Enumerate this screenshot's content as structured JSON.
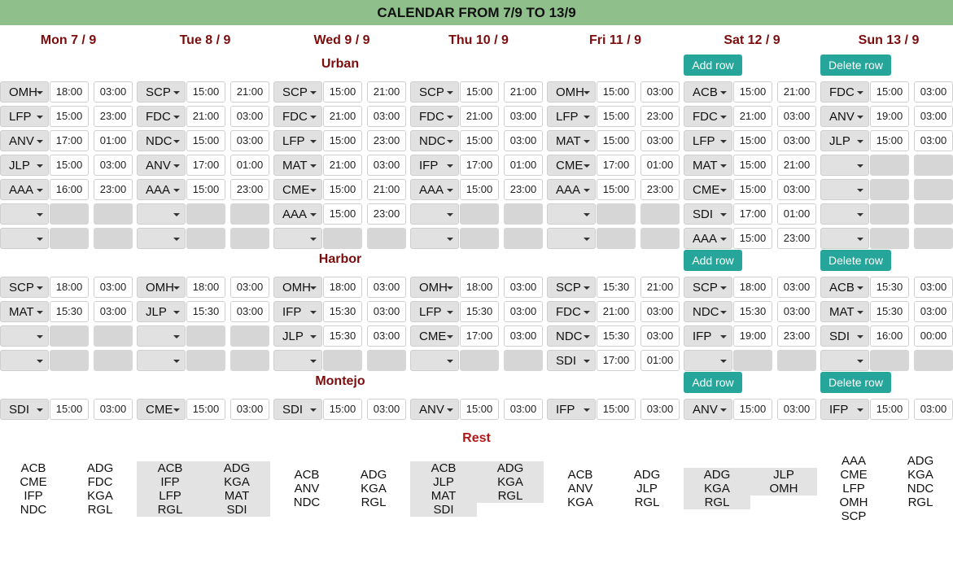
{
  "title": "CALENDAR FROM 7/9 TO 13/9",
  "days": [
    "Mon 7 / 9",
    "Tue 8 / 9",
    "Wed 9 / 9",
    "Thu 10 / 9",
    "Fri 11 / 9",
    "Sat 12 / 9",
    "Sun 13 / 9"
  ],
  "buttons": {
    "add": "Add row",
    "delete": "Delete row"
  },
  "colors": {
    "header_bg": "#8fbf8a",
    "day_text": "#7b0d0d",
    "button_bg": "#26a69a",
    "rest_title": "#b01717"
  },
  "sections": [
    {
      "name": "Urban",
      "rows": [
        [
          [
            "OMH",
            "18:00",
            "03:00"
          ],
          [
            "SCP",
            "15:00",
            "21:00"
          ],
          [
            "SCP",
            "15:00",
            "21:00"
          ],
          [
            "SCP",
            "15:00",
            "21:00"
          ],
          [
            "OMH",
            "15:00",
            "03:00"
          ],
          [
            "ACB",
            "15:00",
            "21:00"
          ],
          [
            "FDC",
            "15:00",
            "03:00"
          ]
        ],
        [
          [
            "LFP",
            "15:00",
            "23:00"
          ],
          [
            "FDC",
            "21:00",
            "03:00"
          ],
          [
            "FDC",
            "21:00",
            "03:00"
          ],
          [
            "FDC",
            "21:00",
            "03:00"
          ],
          [
            "LFP",
            "15:00",
            "23:00"
          ],
          [
            "FDC",
            "21:00",
            "03:00"
          ],
          [
            "ANV",
            "19:00",
            "03:00"
          ]
        ],
        [
          [
            "ANV",
            "17:00",
            "01:00"
          ],
          [
            "NDC",
            "15:00",
            "03:00"
          ],
          [
            "LFP",
            "15:00",
            "23:00"
          ],
          [
            "NDC",
            "15:00",
            "03:00"
          ],
          [
            "MAT",
            "15:00",
            "03:00"
          ],
          [
            "LFP",
            "15:00",
            "03:00"
          ],
          [
            "JLP",
            "15:00",
            "03:00"
          ]
        ],
        [
          [
            "JLP",
            "15:00",
            "03:00"
          ],
          [
            "ANV",
            "17:00",
            "01:00"
          ],
          [
            "MAT",
            "21:00",
            "03:00"
          ],
          [
            "IFP",
            "17:00",
            "01:00"
          ],
          [
            "CME",
            "17:00",
            "01:00"
          ],
          [
            "MAT",
            "15:00",
            "21:00"
          ],
          [
            "",
            "",
            ""
          ]
        ],
        [
          [
            "AAA",
            "16:00",
            "23:00"
          ],
          [
            "AAA",
            "15:00",
            "23:00"
          ],
          [
            "CME",
            "15:00",
            "21:00"
          ],
          [
            "AAA",
            "15:00",
            "23:00"
          ],
          [
            "AAA",
            "15:00",
            "23:00"
          ],
          [
            "CME",
            "15:00",
            "03:00"
          ],
          [
            "",
            "",
            ""
          ]
        ],
        [
          [
            "",
            "",
            ""
          ],
          [
            "",
            "",
            ""
          ],
          [
            "AAA",
            "15:00",
            "23:00"
          ],
          [
            "",
            "",
            ""
          ],
          [
            "",
            "",
            ""
          ],
          [
            "SDI",
            "17:00",
            "01:00"
          ],
          [
            "",
            "",
            ""
          ]
        ],
        [
          [
            "",
            "",
            ""
          ],
          [
            "",
            "",
            ""
          ],
          [
            "",
            "",
            ""
          ],
          [
            "",
            "",
            ""
          ],
          [
            "",
            "",
            ""
          ],
          [
            "AAA",
            "15:00",
            "23:00"
          ],
          [
            "",
            "",
            ""
          ]
        ]
      ]
    },
    {
      "name": "Harbor",
      "rows": [
        [
          [
            "SCP",
            "18:00",
            "03:00"
          ],
          [
            "OMH",
            "18:00",
            "03:00"
          ],
          [
            "OMH",
            "18:00",
            "03:00"
          ],
          [
            "OMH",
            "18:00",
            "03:00"
          ],
          [
            "SCP",
            "15:30",
            "21:00"
          ],
          [
            "SCP",
            "18:00",
            "03:00"
          ],
          [
            "ACB",
            "15:30",
            "03:00"
          ]
        ],
        [
          [
            "MAT",
            "15:30",
            "03:00"
          ],
          [
            "JLP",
            "15:30",
            "03:00"
          ],
          [
            "IFP",
            "15:30",
            "03:00"
          ],
          [
            "LFP",
            "15:30",
            "03:00"
          ],
          [
            "FDC",
            "21:00",
            "03:00"
          ],
          [
            "NDC",
            "15:30",
            "03:00"
          ],
          [
            "MAT",
            "15:30",
            "03:00"
          ]
        ],
        [
          [
            "",
            "",
            ""
          ],
          [
            "",
            "",
            ""
          ],
          [
            "JLP",
            "15:30",
            "03:00"
          ],
          [
            "CME",
            "17:00",
            "03:00"
          ],
          [
            "NDC",
            "15:30",
            "03:00"
          ],
          [
            "IFP",
            "19:00",
            "23:00"
          ],
          [
            "SDI",
            "16:00",
            "00:00"
          ]
        ],
        [
          [
            "",
            "",
            ""
          ],
          [
            "",
            "",
            ""
          ],
          [
            "",
            "",
            ""
          ],
          [
            "",
            "",
            ""
          ],
          [
            "SDI",
            "17:00",
            "01:00"
          ],
          [
            "",
            "",
            ""
          ],
          [
            "",
            "",
            ""
          ]
        ]
      ]
    },
    {
      "name": "Montejo",
      "rows": [
        [
          [
            "SDI",
            "15:00",
            "03:00"
          ],
          [
            "CME",
            "15:00",
            "03:00"
          ],
          [
            "SDI",
            "15:00",
            "03:00"
          ],
          [
            "ANV",
            "15:00",
            "03:00"
          ],
          [
            "IFP",
            "15:00",
            "03:00"
          ],
          [
            "ANV",
            "15:00",
            "03:00"
          ],
          [
            "IFP",
            "15:00",
            "03:00"
          ]
        ]
      ]
    }
  ],
  "rest": {
    "title": "Rest",
    "days": [
      {
        "col1": [
          "ACB",
          "CME",
          "IFP",
          "NDC"
        ],
        "col2": [
          "ADG",
          "FDC",
          "KGA",
          "RGL"
        ]
      },
      {
        "col1": [
          "ACB",
          "IFP",
          "LFP",
          "RGL"
        ],
        "col2": [
          "ADG",
          "KGA",
          "MAT",
          "SDI"
        ]
      },
      {
        "col1": [
          "ACB",
          "ANV",
          "NDC"
        ],
        "col2": [
          "ADG",
          "KGA",
          "RGL"
        ]
      },
      {
        "col1": [
          "ACB",
          "JLP",
          "MAT",
          "SDI"
        ],
        "col2": [
          "ADG",
          "KGA",
          "RGL"
        ]
      },
      {
        "col1": [
          "ACB",
          "ANV",
          "KGA"
        ],
        "col2": [
          "ADG",
          "JLP",
          "RGL"
        ]
      },
      {
        "col1": [
          "ADG",
          "KGA",
          "RGL"
        ],
        "col2": [
          "JLP",
          "OMH"
        ]
      },
      {
        "col1": [
          "AAA",
          "CME",
          "LFP",
          "OMH",
          "SCP"
        ],
        "col2": [
          "ADG",
          "KGA",
          "NDC",
          "RGL"
        ]
      }
    ]
  }
}
